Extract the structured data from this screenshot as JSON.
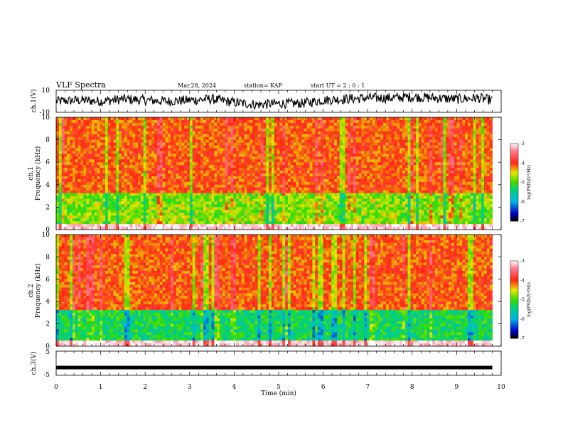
{
  "header": {
    "title": "VLF Spectra",
    "date": "Mar.28, 2024",
    "station": "station= KAP",
    "start": "start  UT  =   2  : 0  : 1"
  },
  "chart_data": [
    {
      "type": "line",
      "ylabel": "ch.1(V)",
      "ylim": [
        -10,
        10
      ],
      "yticks": [
        "10",
        "-10"
      ],
      "xlim": [
        0,
        10
      ],
      "description_series": "waveform",
      "x": [
        0,
        0.5,
        1,
        1.5,
        2,
        2.5,
        3,
        3.5,
        4,
        4.5,
        5,
        5.5,
        6,
        6.5,
        7,
        7.5,
        8,
        8.5,
        9,
        9.5,
        9.8
      ],
      "y": [
        0,
        1,
        0,
        2,
        1,
        0,
        1,
        2,
        -1,
        -3,
        -2,
        -2,
        1,
        2,
        3,
        3,
        4,
        3,
        2,
        3,
        1
      ]
    },
    {
      "type": "heatmap",
      "ylabel_top": "ch.1",
      "ylabel": "Frequency (kHz)",
      "ylim": [
        0,
        10
      ],
      "yticks": [
        "0",
        "2",
        "4",
        "6",
        "8",
        "10"
      ],
      "xlim": [
        0,
        10
      ],
      "colorbar_label": "log(PSD)(V²/Hz)",
      "colorbar_range": [
        -7,
        -3
      ],
      "colorbar_ticks": [
        "-3",
        "-4",
        "-5",
        "-6",
        "-7"
      ]
    },
    {
      "type": "heatmap",
      "ylabel_top": "ch.2",
      "ylabel": "Frequency (kHz)",
      "ylim": [
        0,
        10
      ],
      "yticks": [
        "0",
        "2",
        "4",
        "6",
        "8",
        "10"
      ],
      "xlim": [
        0,
        10
      ],
      "colorbar_label": "log(PSD)(V²/Hz)",
      "colorbar_range": [
        -7,
        -3
      ],
      "colorbar_ticks": [
        "-3",
        "-4",
        "-5",
        "-6",
        "-7"
      ]
    },
    {
      "type": "line",
      "ylabel": "ch.3(V)",
      "ylim": [
        -5,
        5
      ],
      "yticks": [
        "5",
        "-5"
      ],
      "xlim": [
        0,
        10
      ],
      "x": [
        0,
        9.8
      ],
      "y": [
        -1.8,
        -1.8
      ]
    }
  ],
  "xaxis": {
    "label": "Time (min)",
    "ticks": [
      "0",
      "1",
      "2",
      "3",
      "4",
      "5",
      "6",
      "7",
      "8",
      "9",
      "10"
    ]
  }
}
